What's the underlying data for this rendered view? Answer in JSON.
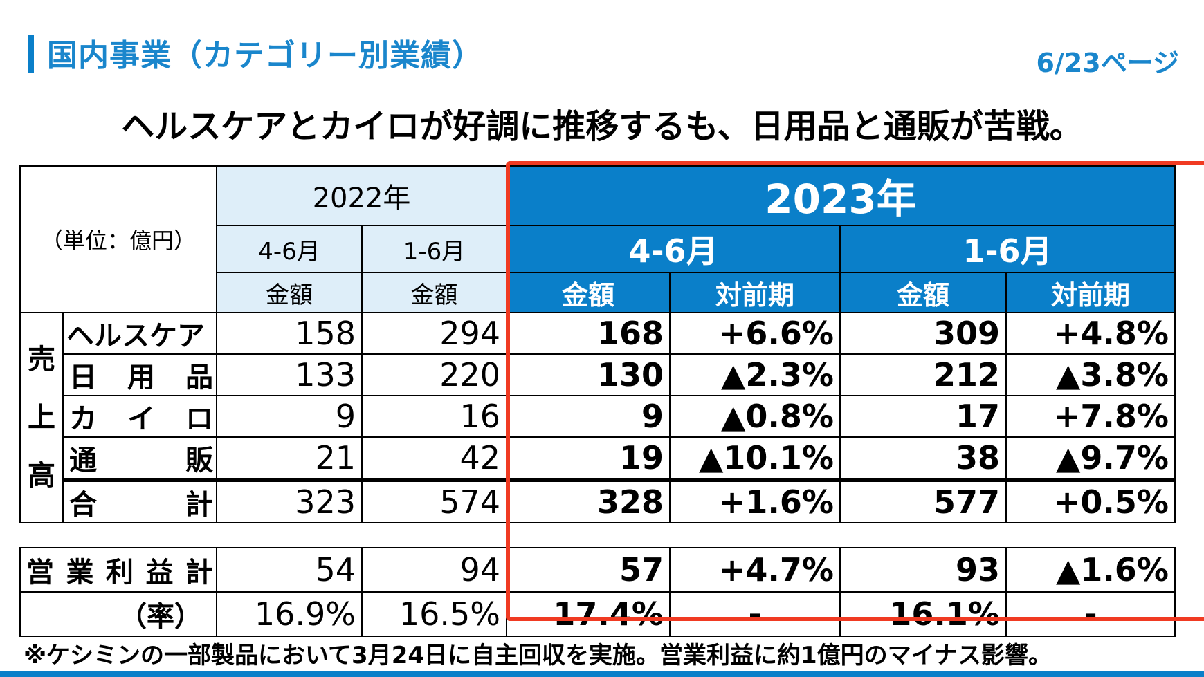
{
  "header": {
    "section_title": "国内事業（カテゴリー別業績）",
    "page_indicator": "6/23ページ"
  },
  "headline": "ヘルスケアとカイロが好調に推移するも、日用品と通販が苦戦。",
  "table": {
    "unit_label": "（単位：億円）",
    "prev_year": "2022年",
    "curr_year": "2023年",
    "periods": [
      "4-6月",
      "1-6月"
    ],
    "col_amount": "金額",
    "col_yoy": "対前期",
    "sales_label": [
      "売",
      "上",
      "高"
    ],
    "rows": [
      {
        "label_parts": [
          "ヘルスケア"
        ],
        "p1": "158",
        "p2": "294",
        "c1": "168",
        "c1y": "+6.6%",
        "c2": "309",
        "c2y": "+4.8%"
      },
      {
        "label_parts": [
          "日",
          "用",
          "品"
        ],
        "p1": "133",
        "p2": "220",
        "c1": "130",
        "c1y": "▲2.3%",
        "c2": "212",
        "c2y": "▲3.8%"
      },
      {
        "label_parts": [
          "カ",
          "イ",
          "ロ"
        ],
        "p1": "9",
        "p2": "16",
        "c1": "9",
        "c1y": "▲0.8%",
        "c2": "17",
        "c2y": "+7.8%"
      },
      {
        "label_parts": [
          "通",
          "販"
        ],
        "p1": "21",
        "p2": "42",
        "c1": "19",
        "c1y": "▲10.1%",
        "c2": "38",
        "c2y": "▲9.7%"
      },
      {
        "label_parts": [
          "合",
          "計"
        ],
        "p1": "323",
        "p2": "574",
        "c1": "328",
        "c1y": "+1.6%",
        "c2": "577",
        "c2y": "+0.5%"
      }
    ],
    "op_profit": {
      "label_parts": [
        "営",
        "業",
        "利",
        "益",
        "計"
      ],
      "p1": "54",
      "p2": "94",
      "c1": "57",
      "c1y": "+4.7%",
      "c2": "93",
      "c2y": "▲1.6%"
    },
    "op_rate": {
      "label": "（率）",
      "p1": "16.9%",
      "p2": "16.5%",
      "c1": "17.4%",
      "c1y": "-",
      "c2": "16.1%",
      "c2y": "-"
    }
  },
  "footnote": "※ケシミンの一部製品において3月24日に自主回収を実施。営業利益に約1億円のマイナス影響。",
  "colors": {
    "accent": "#0a7fc9",
    "highlight_border": "#f03a22",
    "prev_year_bg": "#deeef9"
  }
}
